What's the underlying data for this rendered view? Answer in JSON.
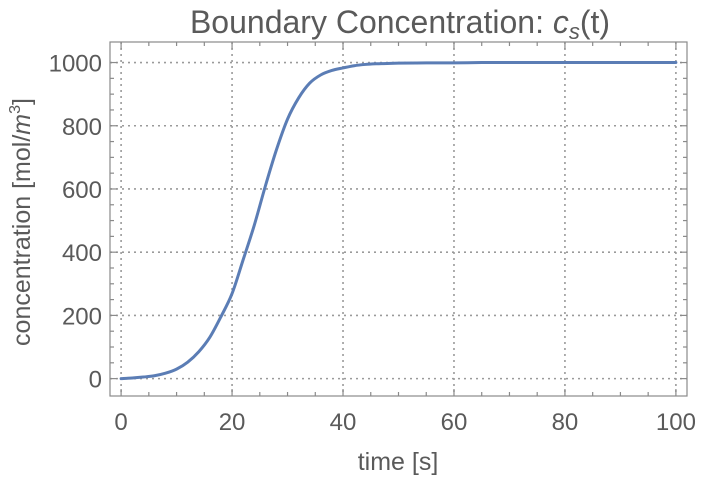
{
  "chart_data": {
    "type": "line",
    "title": {
      "prefix": "Boundary Concentration: ",
      "symbol": "c",
      "subscript": "s",
      "suffix": "(t)"
    },
    "xlabel": "time [s]",
    "ylabel": {
      "prefix": "concentration [mol/",
      "unit": "m",
      "exponent": "3",
      "suffix": "]"
    },
    "xlim": [
      -2,
      102
    ],
    "ylim": [
      -55,
      1065
    ],
    "x_ticks": [
      0,
      20,
      40,
      60,
      80,
      100
    ],
    "y_ticks": [
      0,
      200,
      400,
      600,
      800,
      1000
    ],
    "grid": true,
    "series": [
      {
        "color": "#5b7db5",
        "x": [
          0,
          2,
          4,
          6,
          8,
          10,
          12,
          14,
          16,
          18,
          20,
          22,
          24,
          26,
          28,
          30,
          32,
          34,
          36,
          38,
          40,
          42,
          44,
          46,
          48,
          50,
          55,
          60,
          65,
          70,
          75,
          80,
          85,
          90,
          95,
          100
        ],
        "y": [
          0,
          2,
          5,
          9,
          17,
          30,
          52,
          85,
          131,
          196,
          269,
          376,
          485,
          609,
          724,
          821,
          888,
          935,
          961,
          975,
          983,
          990,
          994,
          996,
          997,
          998,
          999,
          999,
          1000,
          1000,
          1000,
          1000,
          1000,
          1000,
          1000,
          1000
        ]
      }
    ]
  }
}
